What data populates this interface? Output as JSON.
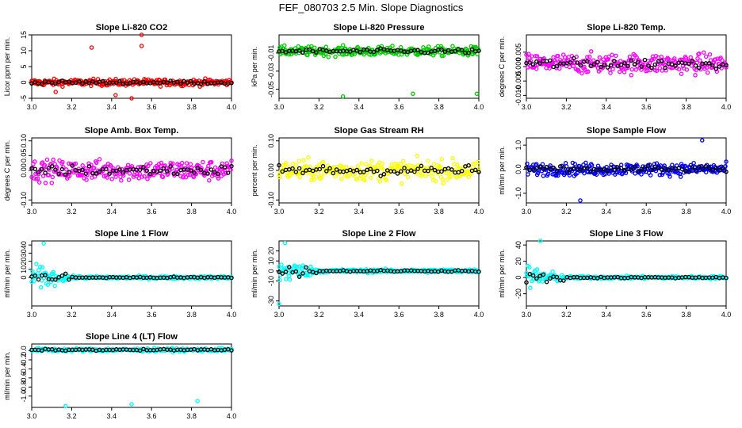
{
  "title": "FEF_080703  2.5 Min. Slope Diagnostics",
  "chart_data": [
    {
      "type": "scatter",
      "title": "Slope Li-820 CO2",
      "ylabel": "Licor ppm per min.",
      "color": "#ff0000",
      "xlim": [
        3.0,
        4.0
      ],
      "ylim": [
        -5,
        15
      ],
      "xticks": [
        "3.0",
        "3.2",
        "3.4",
        "3.6",
        "3.8",
        "4.0"
      ],
      "yticks": [
        "-5",
        "0",
        "5",
        "10",
        "15"
      ],
      "spread": 1.2,
      "outliers": [
        [
          3.3,
          11
        ],
        [
          3.55,
          15
        ],
        [
          3.55,
          11.5
        ],
        [
          3.12,
          -3
        ],
        [
          3.42,
          -4
        ],
        [
          3.5,
          -5
        ]
      ]
    },
    {
      "type": "scatter",
      "title": "Slope Li-820 Pressure",
      "ylabel": "kPa per min.",
      "color": "#00cc00",
      "xlim": [
        3.0,
        4.0
      ],
      "ylim": [
        -0.06,
        0.01
      ],
      "xticks": [
        "3.0",
        "3.2",
        "3.4",
        "3.6",
        "3.8",
        "4.0"
      ],
      "yticks": [
        "-0.05",
        "-0.03",
        "-0.01"
      ],
      "spread": 0.006,
      "center": -0.008,
      "outliers": [
        [
          3.32,
          -0.058
        ],
        [
          3.67,
          -0.055
        ],
        [
          3.99,
          -0.055
        ]
      ]
    },
    {
      "type": "scatter",
      "title": "Slope Li-820 Temp.",
      "ylabel": "degrees C per min.",
      "color": "#ff00ff",
      "xlim": [
        3.0,
        4.0
      ],
      "ylim": [
        -0.011,
        0.011
      ],
      "xticks": [
        "3.0",
        "3.2",
        "3.4",
        "3.6",
        "3.8",
        "4.0"
      ],
      "yticks": [
        "-0.010",
        "-0.005",
        "0.000",
        "0.005"
      ],
      "spread": 0.004,
      "center": 0.001,
      "outliers": []
    },
    {
      "type": "scatter",
      "title": "Slope Amb. Box Temp.",
      "ylabel": "degrees C per min.",
      "color": "#ff00ff",
      "xlim": [
        3.0,
        4.0
      ],
      "ylim": [
        -0.11,
        0.11
      ],
      "xticks": [
        "3.0",
        "3.2",
        "3.4",
        "3.6",
        "3.8",
        "4.0"
      ],
      "yticks": [
        "-0.10",
        "0.00",
        "0.05",
        "0.10"
      ],
      "spread": 0.04,
      "center": 0.0,
      "outliers": []
    },
    {
      "type": "scatter",
      "title": "Slope Gas Stream RH",
      "ylabel": "percent per min.",
      "color": "#ffff00",
      "xlim": [
        3.0,
        4.0
      ],
      "ylim": [
        -0.11,
        0.11
      ],
      "xticks": [
        "3.0",
        "3.2",
        "3.4",
        "3.6",
        "3.8",
        "4.0"
      ],
      "yticks": [
        "-0.10",
        "0.00",
        "0.10"
      ],
      "spread": 0.04,
      "center": 0.0,
      "outliers": []
    },
    {
      "type": "scatter",
      "title": "Slope Sample Flow",
      "ylabel": "ml/min per min.",
      "color": "#0000ff",
      "xlim": [
        3.0,
        4.0
      ],
      "ylim": [
        -1.4,
        1.3
      ],
      "xticks": [
        "3.0",
        "3.2",
        "3.4",
        "3.6",
        "3.8",
        "4.0"
      ],
      "yticks": [
        "-1.0",
        "0.0",
        "1.0"
      ],
      "spread": 0.3,
      "center": 0.0,
      "outliers": [
        [
          3.27,
          -1.3
        ],
        [
          3.88,
          1.2
        ]
      ]
    },
    {
      "type": "scatter",
      "title": "Slope Line 1 Flow",
      "ylabel": "ml/min per min.",
      "color": "#00ffff",
      "xlim": [
        3.0,
        4.0
      ],
      "ylim": [
        -35,
        45
      ],
      "xticks": [
        "3.0",
        "3.2",
        "3.4",
        "3.6",
        "3.8",
        "4.0"
      ],
      "yticks": [
        "0",
        "10",
        "20",
        "30",
        "40"
      ],
      "spread": 2,
      "center": 0,
      "burst": 30,
      "outliers": [
        [
          3.06,
          42
        ]
      ]
    },
    {
      "type": "scatter",
      "title": "Slope Line 2 Flow",
      "ylabel": "ml/min per min.",
      "color": "#00ffff",
      "xlim": [
        3.0,
        4.0
      ],
      "ylim": [
        -35,
        30
      ],
      "xticks": [
        "3.0",
        "3.2",
        "3.4",
        "3.6",
        "3.8",
        "4.0"
      ],
      "yticks": [
        "-30",
        "-10",
        "0",
        "10",
        "20"
      ],
      "spread": 2,
      "center": 0,
      "burst": 25,
      "outliers": [
        [
          3.0,
          -33
        ],
        [
          3.03,
          28
        ]
      ]
    },
    {
      "type": "scatter",
      "title": "Slope Line 3 Flow",
      "ylabel": "ml/min per min.",
      "color": "#00ffff",
      "xlim": [
        3.0,
        4.0
      ],
      "ylim": [
        -35,
        45
      ],
      "xticks": [
        "3.0",
        "3.2",
        "3.4",
        "3.6",
        "3.8",
        "4.0"
      ],
      "yticks": [
        "-20",
        "0",
        "20",
        "40"
      ],
      "spread": 2,
      "center": 0,
      "burst": 28,
      "outliers": [
        [
          3.07,
          45
        ]
      ]
    },
    {
      "type": "scatter",
      "title": "Slope Line 4 (LT) Flow",
      "ylabel": "ml/min per min.",
      "color": "#00ffff",
      "xlim": [
        3.0,
        4.0
      ],
      "ylim": [
        -1.25,
        0.15
      ],
      "xticks": [
        "3.0",
        "3.2",
        "3.4",
        "3.6",
        "3.8",
        "4.0"
      ],
      "yticks": [
        "-1.0",
        "-0.8",
        "-0.6",
        "-0.4",
        "-0.2",
        "0.0"
      ],
      "spread": 0.04,
      "center": 0.02,
      "outliers": [
        [
          3.17,
          -1.22
        ],
        [
          3.5,
          -1.18
        ],
        [
          3.83,
          -1.11
        ]
      ]
    }
  ]
}
